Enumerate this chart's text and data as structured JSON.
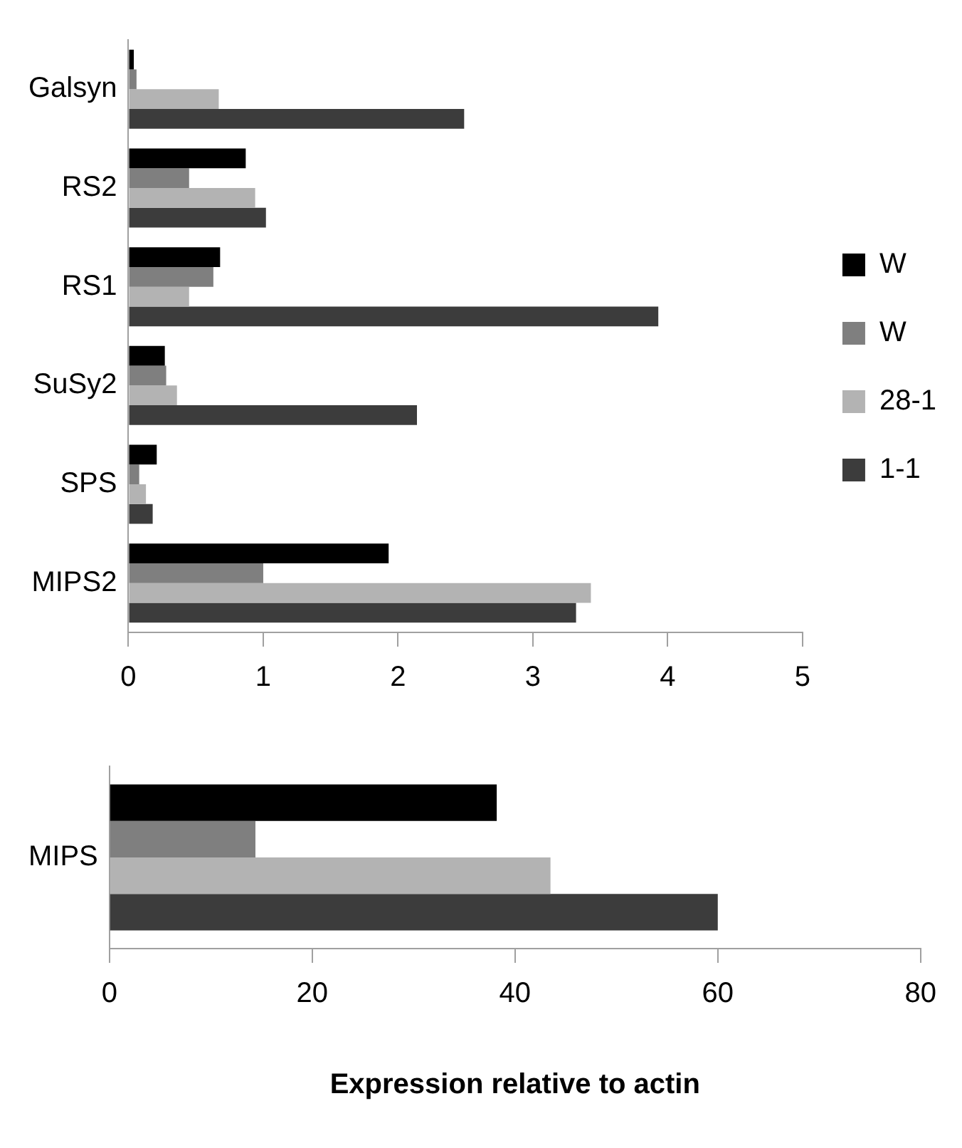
{
  "chart_data": [
    {
      "type": "bar",
      "orientation": "horizontal",
      "categories": [
        "Galsyn",
        "RS2",
        "RS1",
        "SuSy2",
        "SPS",
        "MIPS2"
      ],
      "series": [
        {
          "name": "W",
          "color": "#000000",
          "values": [
            0.04,
            0.87,
            0.68,
            0.27,
            0.21,
            1.93
          ]
        },
        {
          "name": "W",
          "color": "#7f7f7f",
          "values": [
            0.06,
            0.45,
            0.63,
            0.28,
            0.08,
            1.0
          ]
        },
        {
          "name": "28-1",
          "color": "#b3b3b3",
          "values": [
            0.67,
            0.94,
            0.45,
            0.36,
            0.13,
            3.43
          ]
        },
        {
          "name": "1-1",
          "color": "#3c3c3c",
          "values": [
            2.49,
            1.02,
            3.93,
            2.14,
            0.18,
            3.32
          ]
        }
      ],
      "xlim": [
        0,
        5
      ],
      "xticks": [
        0,
        1,
        2,
        3,
        4,
        5
      ],
      "grid": false,
      "legend": "right"
    },
    {
      "type": "bar",
      "orientation": "horizontal",
      "categories": [
        "MIPS"
      ],
      "xlabel": "Expression relative to actin",
      "series": [
        {
          "color": "#000000",
          "values": [
            38.2
          ]
        },
        {
          "color": "#7f7f7f",
          "values": [
            14.4
          ]
        },
        {
          "color": "#b3b3b3",
          "values": [
            43.5
          ]
        },
        {
          "color": "#3c3c3c",
          "values": [
            60
          ]
        }
      ],
      "xlim": [
        0,
        80
      ],
      "xticks": [
        0,
        20,
        40,
        60,
        80
      ],
      "grid": false,
      "legend": false
    }
  ]
}
